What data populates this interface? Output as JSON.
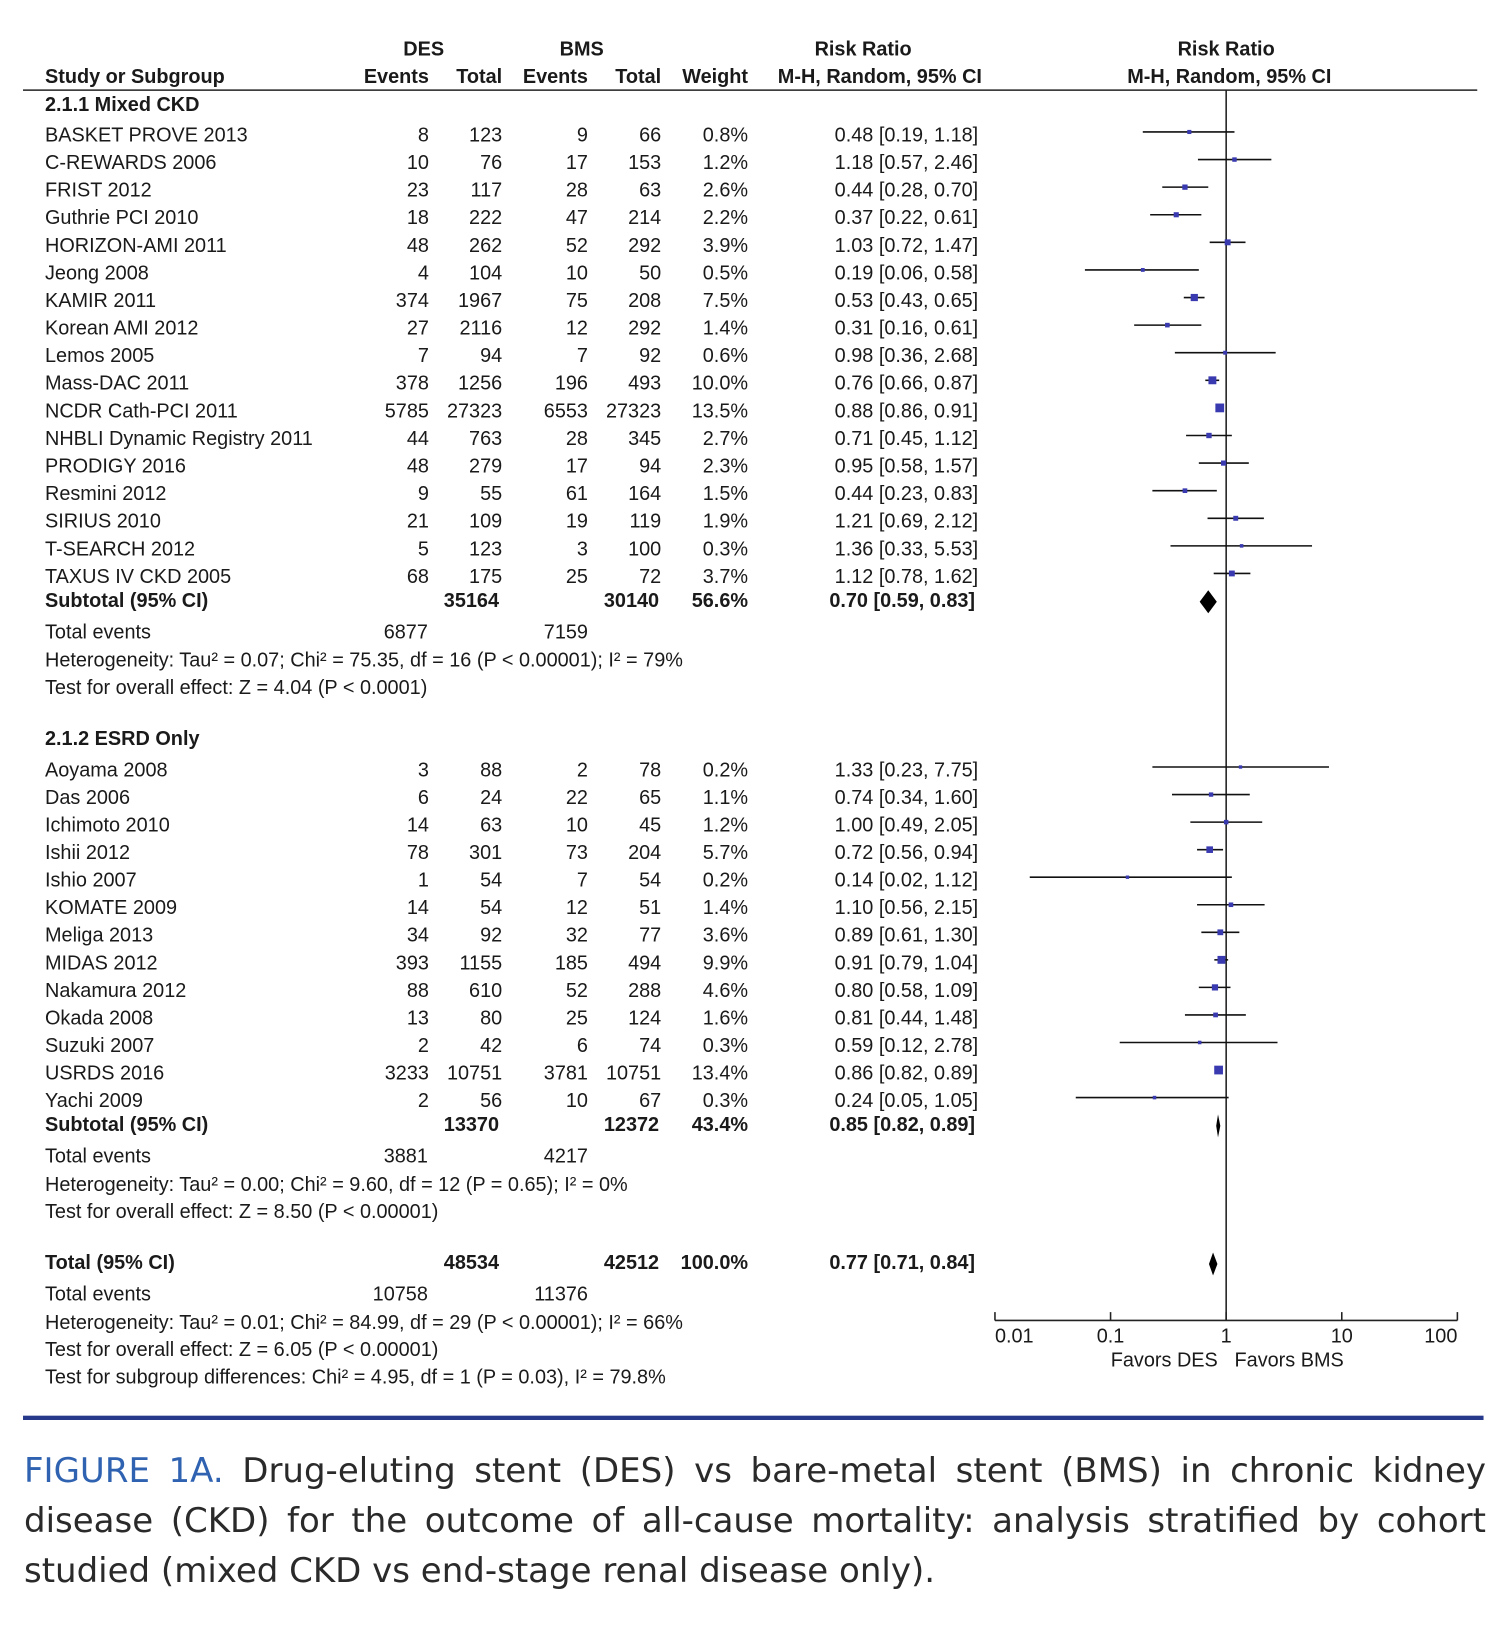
{
  "chart_data": {
    "type": "forest",
    "headers": {
      "study": "Study or Subgroup",
      "des": "DES",
      "bms": "BMS",
      "events": "Events",
      "total": "Total",
      "weight": "Weight",
      "effect": "Risk Ratio",
      "method": "M-H, Random, 95% CI"
    },
    "log": true,
    "xlim": [
      0.01,
      100
    ],
    "xticks": [
      0.01,
      0.1,
      1,
      10,
      100
    ],
    "xlabel_left": "Favors DES",
    "xlabel_right": "Favors BMS",
    "color": "#3a3ab0",
    "groups": [
      {
        "title": "2.1.1 Mixed CKD",
        "studies": [
          {
            "name": "BASKET PROVE 2013",
            "des_events": 8,
            "des_total": 123,
            "bms_events": 9,
            "bms_total": 66,
            "weight": 0.8,
            "weight_label": "0.8%",
            "rr": 0.48,
            "lo": 0.19,
            "hi": 1.18,
            "ci_label": "0.48 [0.19, 1.18]"
          },
          {
            "name": "C-REWARDS 2006",
            "des_events": 10,
            "des_total": 76,
            "bms_events": 17,
            "bms_total": 153,
            "weight": 1.2,
            "weight_label": "1.2%",
            "rr": 1.18,
            "lo": 0.57,
            "hi": 2.46,
            "ci_label": "1.18 [0.57, 2.46]"
          },
          {
            "name": "FRIST 2012",
            "des_events": 23,
            "des_total": 117,
            "bms_events": 28,
            "bms_total": 63,
            "weight": 2.6,
            "weight_label": "2.6%",
            "rr": 0.44,
            "lo": 0.28,
            "hi": 0.7,
            "ci_label": "0.44 [0.28, 0.70]"
          },
          {
            "name": "Guthrie PCI 2010",
            "des_events": 18,
            "des_total": 222,
            "bms_events": 47,
            "bms_total": 214,
            "weight": 2.2,
            "weight_label": "2.2%",
            "rr": 0.37,
            "lo": 0.22,
            "hi": 0.61,
            "ci_label": "0.37 [0.22, 0.61]"
          },
          {
            "name": "HORIZON-AMI 2011",
            "des_events": 48,
            "des_total": 262,
            "bms_events": 52,
            "bms_total": 292,
            "weight": 3.9,
            "weight_label": "3.9%",
            "rr": 1.03,
            "lo": 0.72,
            "hi": 1.47,
            "ci_label": "1.03 [0.72, 1.47]"
          },
          {
            "name": "Jeong 2008",
            "des_events": 4,
            "des_total": 104,
            "bms_events": 10,
            "bms_total": 50,
            "weight": 0.5,
            "weight_label": "0.5%",
            "rr": 0.19,
            "lo": 0.06,
            "hi": 0.58,
            "ci_label": "0.19 [0.06, 0.58]"
          },
          {
            "name": "KAMIR 2011",
            "des_events": 374,
            "des_total": 1967,
            "bms_events": 75,
            "bms_total": 208,
            "weight": 7.5,
            "weight_label": "7.5%",
            "rr": 0.53,
            "lo": 0.43,
            "hi": 0.65,
            "ci_label": "0.53 [0.43, 0.65]"
          },
          {
            "name": "Korean AMI 2012",
            "des_events": 27,
            "des_total": 2116,
            "bms_events": 12,
            "bms_total": 292,
            "weight": 1.4,
            "weight_label": "1.4%",
            "rr": 0.31,
            "lo": 0.16,
            "hi": 0.61,
            "ci_label": "0.31 [0.16, 0.61]"
          },
          {
            "name": "Lemos 2005",
            "des_events": 7,
            "des_total": 94,
            "bms_events": 7,
            "bms_total": 92,
            "weight": 0.6,
            "weight_label": "0.6%",
            "rr": 0.98,
            "lo": 0.36,
            "hi": 2.68,
            "ci_label": "0.98 [0.36, 2.68]"
          },
          {
            "name": "Mass-DAC 2011",
            "des_events": 378,
            "des_total": 1256,
            "bms_events": 196,
            "bms_total": 493,
            "weight": 10.0,
            "weight_label": "10.0%",
            "rr": 0.76,
            "lo": 0.66,
            "hi": 0.87,
            "ci_label": "0.76 [0.66, 0.87]"
          },
          {
            "name": "NCDR Cath-PCI 2011",
            "des_events": 5785,
            "des_total": 27323,
            "bms_events": 6553,
            "bms_total": 27323,
            "weight": 13.5,
            "weight_label": "13.5%",
            "rr": 0.88,
            "lo": 0.86,
            "hi": 0.91,
            "ci_label": "0.88 [0.86, 0.91]"
          },
          {
            "name": "NHBLI Dynamic Registry 2011",
            "des_events": 44,
            "des_total": 763,
            "bms_events": 28,
            "bms_total": 345,
            "weight": 2.7,
            "weight_label": "2.7%",
            "rr": 0.71,
            "lo": 0.45,
            "hi": 1.12,
            "ci_label": "0.71 [0.45, 1.12]"
          },
          {
            "name": "PRODIGY 2016",
            "des_events": 48,
            "des_total": 279,
            "bms_events": 17,
            "bms_total": 94,
            "weight": 2.3,
            "weight_label": "2.3%",
            "rr": 0.95,
            "lo": 0.58,
            "hi": 1.57,
            "ci_label": "0.95 [0.58, 1.57]"
          },
          {
            "name": "Resmini 2012",
            "des_events": 9,
            "des_total": 55,
            "bms_events": 61,
            "bms_total": 164,
            "weight": 1.5,
            "weight_label": "1.5%",
            "rr": 0.44,
            "lo": 0.23,
            "hi": 0.83,
            "ci_label": "0.44 [0.23, 0.83]"
          },
          {
            "name": "SIRIUS 2010",
            "des_events": 21,
            "des_total": 109,
            "bms_events": 19,
            "bms_total": 119,
            "weight": 1.9,
            "weight_label": "1.9%",
            "rr": 1.21,
            "lo": 0.69,
            "hi": 2.12,
            "ci_label": "1.21 [0.69, 2.12]"
          },
          {
            "name": "T-SEARCH 2012",
            "des_events": 5,
            "des_total": 123,
            "bms_events": 3,
            "bms_total": 100,
            "weight": 0.3,
            "weight_label": "0.3%",
            "rr": 1.36,
            "lo": 0.33,
            "hi": 5.53,
            "ci_label": "1.36 [0.33, 5.53]"
          },
          {
            "name": "TAXUS IV CKD 2005",
            "des_events": 68,
            "des_total": 175,
            "bms_events": 25,
            "bms_total": 72,
            "weight": 3.7,
            "weight_label": "3.7%",
            "rr": 1.12,
            "lo": 0.78,
            "hi": 1.62,
            "ci_label": "1.12 [0.78, 1.62]"
          }
        ],
        "subtotal": {
          "name": "Subtotal (95% CI)",
          "des_total": 35164,
          "bms_total": 30140,
          "weight": 56.6,
          "weight_label": "56.6%",
          "rr": 0.7,
          "lo": 0.59,
          "hi": 0.83,
          "ci_label": "0.70 [0.59, 0.83]"
        },
        "events": {
          "name": "Total events",
          "des": 6877,
          "bms": 7159
        },
        "heterogeneity": "Heterogeneity: Tau² = 0.07; Chi² = 75.35, df = 16 (P < 0.00001); I² = 79%",
        "overall": "Test for overall effect: Z = 4.04 (P < 0.0001)"
      },
      {
        "title": "2.1.2 ESRD Only",
        "studies": [
          {
            "name": "Aoyama 2008",
            "des_events": 3,
            "des_total": 88,
            "bms_events": 2,
            "bms_total": 78,
            "weight": 0.2,
            "weight_label": "0.2%",
            "rr": 1.33,
            "lo": 0.23,
            "hi": 7.75,
            "ci_label": "1.33 [0.23, 7.75]"
          },
          {
            "name": "Das 2006",
            "des_events": 6,
            "des_total": 24,
            "bms_events": 22,
            "bms_total": 65,
            "weight": 1.1,
            "weight_label": "1.1%",
            "rr": 0.74,
            "lo": 0.34,
            "hi": 1.6,
            "ci_label": "0.74 [0.34, 1.60]"
          },
          {
            "name": "Ichimoto 2010",
            "des_events": 14,
            "des_total": 63,
            "bms_events": 10,
            "bms_total": 45,
            "weight": 1.2,
            "weight_label": "1.2%",
            "rr": 1.0,
            "lo": 0.49,
            "hi": 2.05,
            "ci_label": "1.00 [0.49, 2.05]"
          },
          {
            "name": "Ishii 2012",
            "des_events": 78,
            "des_total": 301,
            "bms_events": 73,
            "bms_total": 204,
            "weight": 5.7,
            "weight_label": "5.7%",
            "rr": 0.72,
            "lo": 0.56,
            "hi": 0.94,
            "ci_label": "0.72 [0.56, 0.94]"
          },
          {
            "name": "Ishio 2007",
            "des_events": 1,
            "des_total": 54,
            "bms_events": 7,
            "bms_total": 54,
            "weight": 0.2,
            "weight_label": "0.2%",
            "rr": 0.14,
            "lo": 0.02,
            "hi": 1.12,
            "ci_label": "0.14 [0.02, 1.12]"
          },
          {
            "name": "KOMATE 2009",
            "des_events": 14,
            "des_total": 54,
            "bms_events": 12,
            "bms_total": 51,
            "weight": 1.4,
            "weight_label": "1.4%",
            "rr": 1.1,
            "lo": 0.56,
            "hi": 2.15,
            "ci_label": "1.10 [0.56, 2.15]"
          },
          {
            "name": "Meliga 2013",
            "des_events": 34,
            "des_total": 92,
            "bms_events": 32,
            "bms_total": 77,
            "weight": 3.6,
            "weight_label": "3.6%",
            "rr": 0.89,
            "lo": 0.61,
            "hi": 1.3,
            "ci_label": "0.89 [0.61, 1.30]"
          },
          {
            "name": "MIDAS 2012",
            "des_events": 393,
            "des_total": 1155,
            "bms_events": 185,
            "bms_total": 494,
            "weight": 9.9,
            "weight_label": "9.9%",
            "rr": 0.91,
            "lo": 0.79,
            "hi": 1.04,
            "ci_label": "0.91 [0.79, 1.04]"
          },
          {
            "name": "Nakamura 2012",
            "des_events": 88,
            "des_total": 610,
            "bms_events": 52,
            "bms_total": 288,
            "weight": 4.6,
            "weight_label": "4.6%",
            "rr": 0.8,
            "lo": 0.58,
            "hi": 1.09,
            "ci_label": "0.80 [0.58, 1.09]"
          },
          {
            "name": "Okada 2008",
            "des_events": 13,
            "des_total": 80,
            "bms_events": 25,
            "bms_total": 124,
            "weight": 1.6,
            "weight_label": "1.6%",
            "rr": 0.81,
            "lo": 0.44,
            "hi": 1.48,
            "ci_label": "0.81 [0.44, 1.48]"
          },
          {
            "name": "Suzuki 2007",
            "des_events": 2,
            "des_total": 42,
            "bms_events": 6,
            "bms_total": 74,
            "weight": 0.3,
            "weight_label": "0.3%",
            "rr": 0.59,
            "lo": 0.12,
            "hi": 2.78,
            "ci_label": "0.59 [0.12, 2.78]"
          },
          {
            "name": "USRDS 2016",
            "des_events": 3233,
            "des_total": 10751,
            "bms_events": 3781,
            "bms_total": 10751,
            "weight": 13.4,
            "weight_label": "13.4%",
            "rr": 0.86,
            "lo": 0.82,
            "hi": 0.89,
            "ci_label": "0.86 [0.82, 0.89]"
          },
          {
            "name": "Yachi 2009",
            "des_events": 2,
            "des_total": 56,
            "bms_events": 10,
            "bms_total": 67,
            "weight": 0.3,
            "weight_label": "0.3%",
            "rr": 0.24,
            "lo": 0.05,
            "hi": 1.05,
            "ci_label": "0.24 [0.05, 1.05]"
          }
        ],
        "subtotal": {
          "name": "Subtotal (95% CI)",
          "des_total": 13370,
          "bms_total": 12372,
          "weight": 43.4,
          "weight_label": "43.4%",
          "rr": 0.85,
          "lo": 0.82,
          "hi": 0.89,
          "ci_label": "0.85 [0.82, 0.89]"
        },
        "events": {
          "name": "Total events",
          "des": 3881,
          "bms": 4217
        },
        "heterogeneity": "Heterogeneity: Tau² = 0.00; Chi² = 9.60, df = 12 (P = 0.65); I² = 0%",
        "overall": "Test for overall effect: Z = 8.50 (P < 0.00001)"
      }
    ],
    "total": {
      "summary": {
        "name": "Total (95% CI)",
        "des_total": 48534,
        "bms_total": 42512,
        "weight": 100.0,
        "weight_label": "100.0%",
        "rr": 0.77,
        "lo": 0.71,
        "hi": 0.84,
        "ci_label": "0.77 [0.71, 0.84]"
      },
      "events": {
        "name": "Total events",
        "des": 10758,
        "bms": 11376
      },
      "heterogeneity": "Heterogeneity: Tau² = 0.01; Chi² = 84.99, df = 29 (P < 0.00001); I² = 66%",
      "overall": "Test for overall effect: Z = 6.05 (P < 0.00001)",
      "subgroup_differences": "Test for subgroup differences: Chi² = 4.95, df = 1 (P = 0.03), I² = 79.8%"
    }
  },
  "caption": {
    "label": "FIGURE 1A.",
    "text": "Drug-eluting stent (DES) vs bare-metal stent (BMS) in chronic kidney disease (CKD) for the outcome of all-cause mortality: analysis stratified by cohort studied (mixed CKD vs end-stage renal disease only)."
  }
}
